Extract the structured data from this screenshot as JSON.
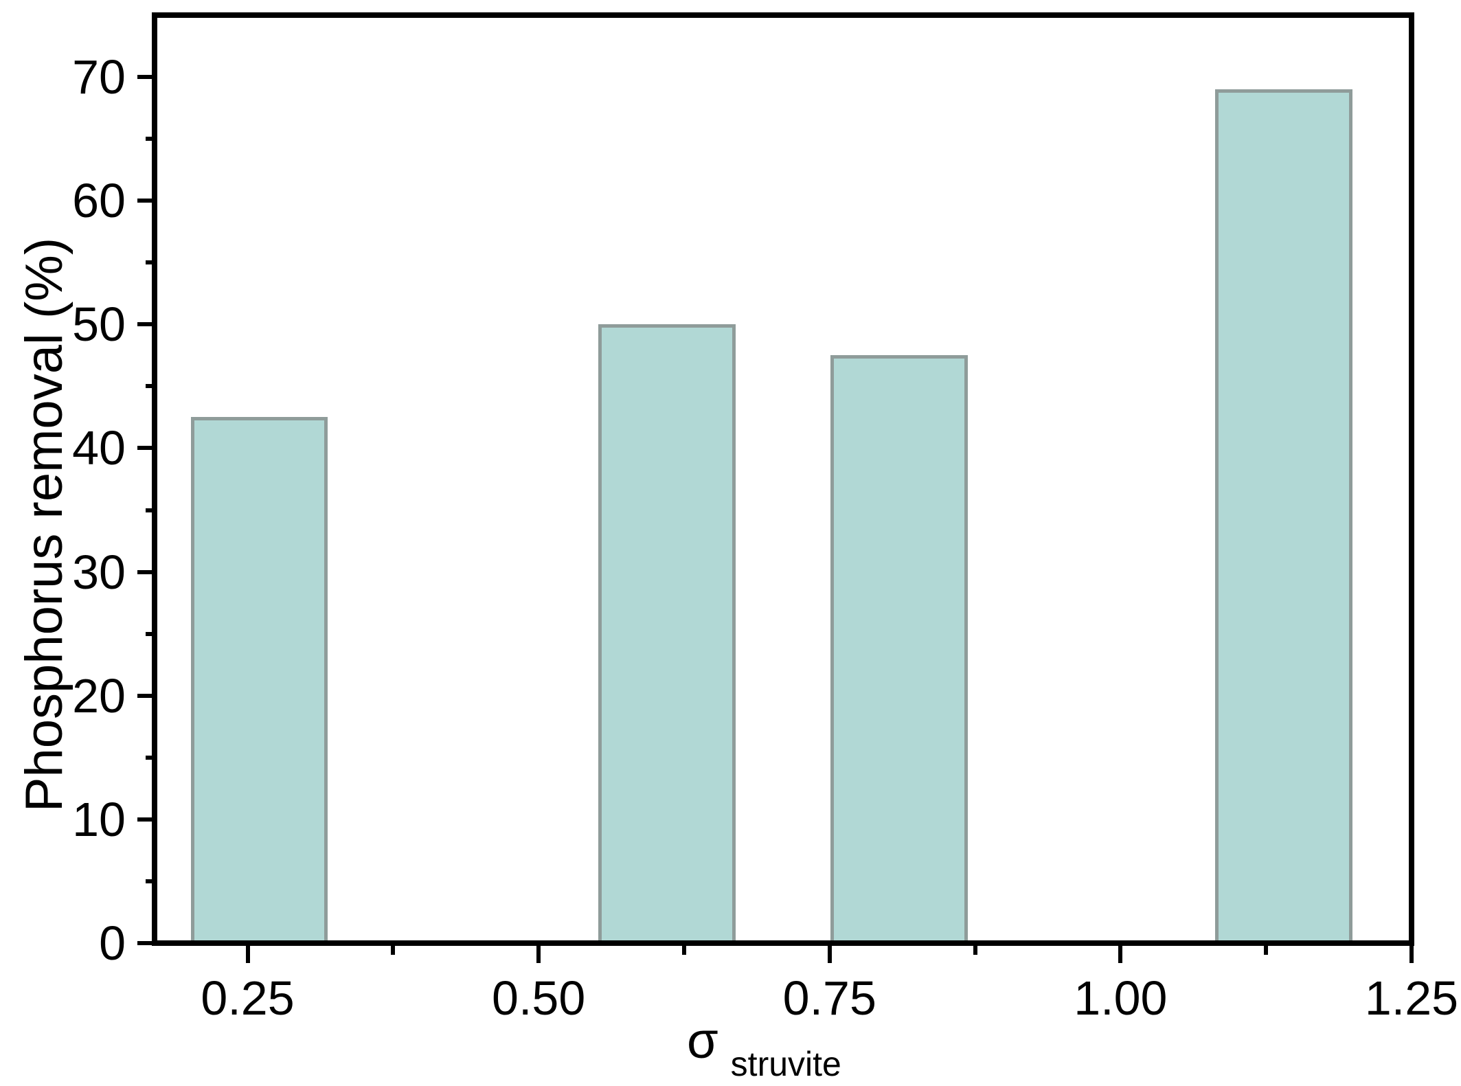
{
  "chart_data": {
    "type": "bar",
    "title": "",
    "ylabel": "Phosphorus removal (%)",
    "xlabel_symbol": "σ",
    "xlabel_subscript": "struvite",
    "x": [
      0.26,
      0.61,
      0.81,
      1.14
    ],
    "values": [
      42.5,
      50,
      47.5,
      69
    ],
    "bar_width": 0.118,
    "xlim": [
      0.17,
      1.25
    ],
    "ylim": [
      0,
      75
    ],
    "x_major_ticks": [
      0.25,
      0.5,
      0.75,
      1.0,
      1.25
    ],
    "x_tick_labels": [
      "0.25",
      "0.50",
      "0.75",
      "1.00",
      "1.25"
    ],
    "x_minor_ticks": [
      0.375,
      0.625,
      0.875,
      1.125
    ],
    "y_major_ticks": [
      0,
      10,
      20,
      30,
      40,
      50,
      60,
      70
    ],
    "y_tick_labels": [
      "0",
      "10",
      "20",
      "30",
      "40",
      "50",
      "60",
      "70"
    ],
    "y_minor_ticks": [
      5,
      15,
      25,
      35,
      45,
      55,
      65
    ],
    "grid": false,
    "legend": null,
    "colors": {
      "bar_fill": "#b1d8d5",
      "bar_border": "#8f9c9a",
      "axis": "#000000",
      "background": "#ffffff"
    }
  }
}
